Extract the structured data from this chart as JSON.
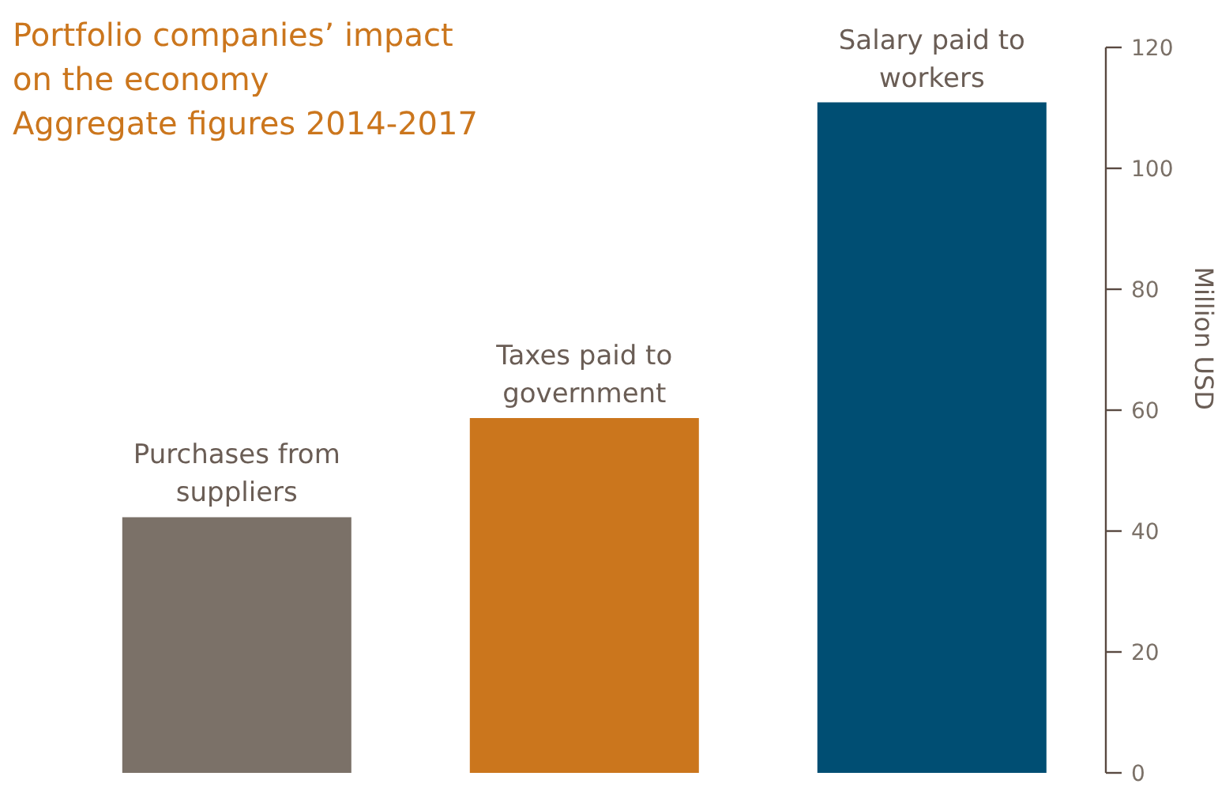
{
  "chart_data": {
    "type": "bar",
    "title": "Portfolio companies’ impact on the economy",
    "subtitle": "Aggregate figures 2014-2017",
    "ylabel": "Million USD",
    "categories": [
      "Purchases from suppliers",
      "Taxes paid to government",
      "Salary paid to workers"
    ],
    "values": [
      42.3,
      58.7,
      110.9
    ],
    "colors": [
      "#7b7168",
      "#cb761d",
      "#004e73"
    ],
    "ylim": [
      0,
      120
    ],
    "yticks": [
      0,
      20,
      40,
      60,
      80,
      100,
      120
    ],
    "grid": false
  }
}
